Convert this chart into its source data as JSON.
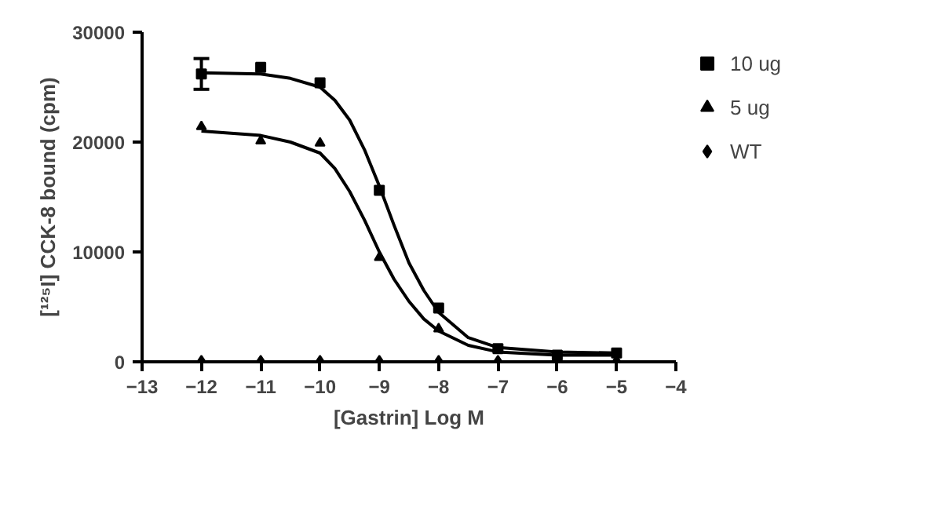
{
  "chart_data": {
    "type": "scatter",
    "xlabel": "[Gastrin] Log M",
    "ylabel": "[¹²⁵I] CCK-8 bound (cpm)",
    "xlim": [
      -13,
      -4
    ],
    "xticks": [
      -13,
      -12,
      -11,
      -10,
      -9,
      -8,
      -7,
      -6,
      -5,
      -4
    ],
    "ylim": [
      0,
      30000
    ],
    "yticks": [
      0,
      10000,
      20000,
      30000
    ],
    "legend": "right",
    "x": [
      -12,
      -11,
      -10,
      -9,
      -8,
      -7,
      -6,
      -5
    ],
    "series": [
      {
        "type": "line",
        "marker": "none",
        "color": "#000000",
        "x": [
          -12,
          -11,
          -10.5,
          -10,
          -9.75,
          -9.5,
          -9.25,
          -9,
          -8.75,
          -8.5,
          -8.25,
          -8,
          -7.5,
          -7,
          -6,
          -5
        ],
        "values": [
          26300,
          26200,
          25800,
          25000,
          23800,
          22000,
          19300,
          16000,
          12400,
          9000,
          6500,
          4500,
          2200,
          1300,
          900,
          800
        ]
      },
      {
        "type": "line",
        "marker": "none",
        "color": "#000000",
        "x": [
          -12,
          -11,
          -10.5,
          -10,
          -9.75,
          -9.5,
          -9.25,
          -9,
          -8.75,
          -8.5,
          -8.25,
          -8,
          -7.5,
          -7,
          -6,
          -5
        ],
        "values": [
          21000,
          20600,
          20000,
          19000,
          17600,
          15500,
          12900,
          10000,
          7500,
          5500,
          3900,
          2800,
          1500,
          900,
          600,
          600
        ]
      },
      {
        "name": "10 ug",
        "type": "scatter",
        "marker": "square",
        "color": "#000000",
        "values": [
          26200,
          26800,
          25400,
          15600,
          4900,
          1200,
          600,
          800
        ],
        "errors": [
          1400,
          null,
          null,
          null,
          null,
          null,
          null,
          null
        ]
      },
      {
        "name": "5 ug",
        "type": "scatter",
        "marker": "triangle",
        "color": "#000000",
        "values": [
          21400,
          20100,
          19900,
          9500,
          3000,
          null,
          null,
          null
        ]
      },
      {
        "name": "WT",
        "type": "scatter",
        "marker": "diamond",
        "color": "#000000",
        "values": [
          0,
          0,
          0,
          0,
          0,
          0,
          null,
          0
        ]
      }
    ]
  }
}
